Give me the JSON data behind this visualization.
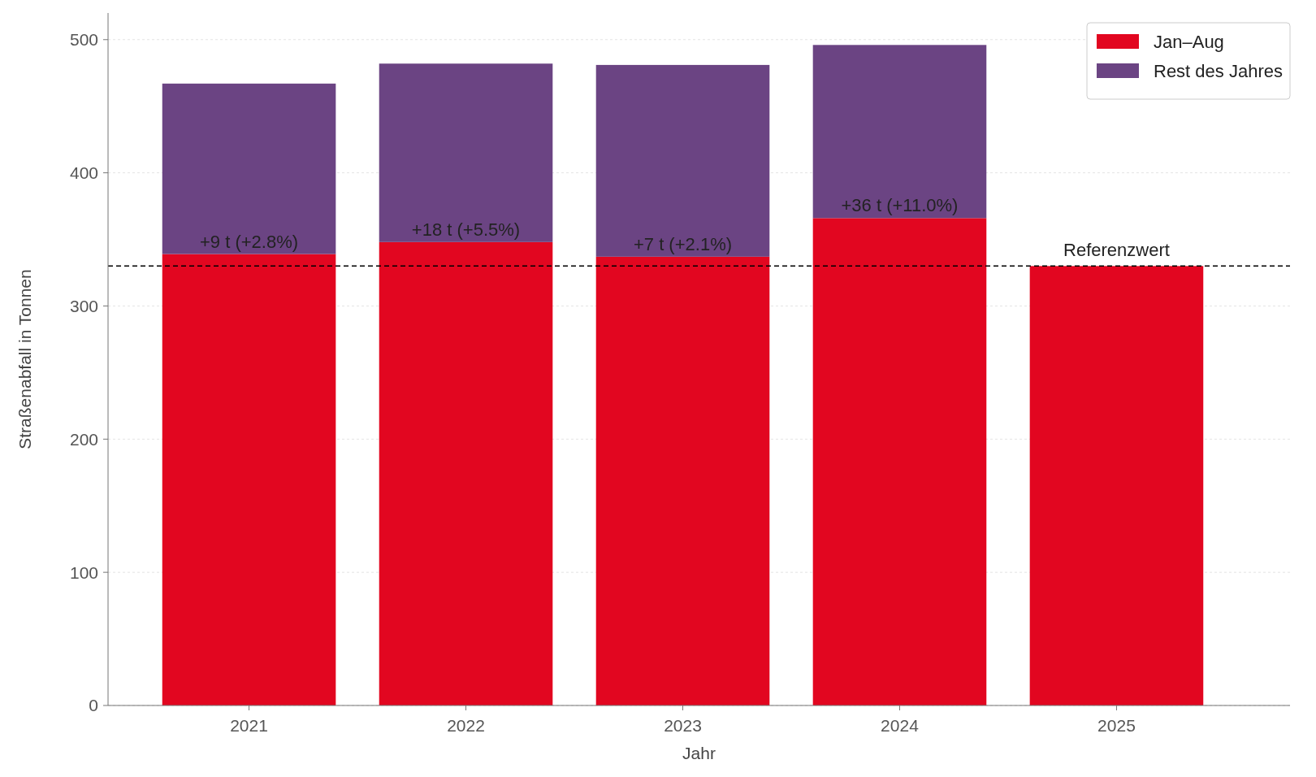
{
  "chart_data": {
    "type": "bar",
    "stacked": true,
    "xlabel": "Jahr",
    "ylabel": "Straßenabfall in Tonnen",
    "categories": [
      "2021",
      "2022",
      "2023",
      "2024",
      "2025"
    ],
    "series": [
      {
        "name": "Jan–Aug",
        "color": "#e20620",
        "values": [
          339,
          348,
          337,
          366,
          330
        ]
      },
      {
        "name": "Rest des Jahres",
        "color": "#6b4483",
        "values": [
          128,
          134,
          144,
          130,
          null
        ]
      }
    ],
    "ylim": [
      0,
      520
    ],
    "yticks": [
      0,
      100,
      200,
      300,
      400,
      500
    ],
    "grid": "y",
    "legend": "top right",
    "ref_lines": [
      {
        "axis": "y",
        "value": 330,
        "label": "Referenzwert",
        "color": "#000000",
        "line_style": "dashed"
      }
    ],
    "annotations": [
      {
        "text": "+9 t (+2.8%)",
        "x": "2021",
        "y": 339
      },
      {
        "text": "+18 t (+5.5%)",
        "x": "2022",
        "y": 348
      },
      {
        "text": "+7 t (+2.1%)",
        "x": "2023",
        "y": 337
      },
      {
        "text": "+36 t (+11.0%)",
        "x": "2024",
        "y": 366
      }
    ]
  }
}
